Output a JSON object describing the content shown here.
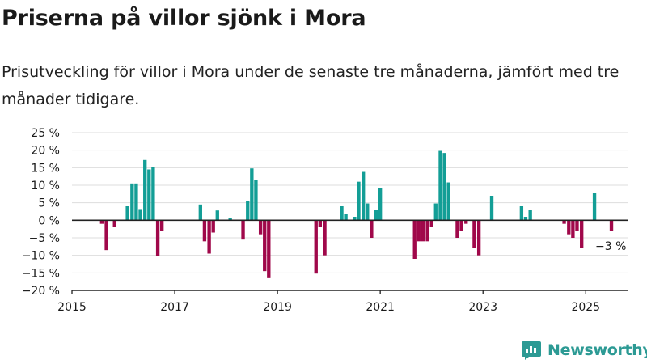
{
  "title": "Priserna på villor sjönk i Mora",
  "subtitle": "Prisutveckling för villor i Mora under de senaste tre månaderna, jämfört med tre månader tidigare.",
  "brand": {
    "name": "Newsworthy",
    "icon": "newsworthy-logo-icon"
  },
  "colors": {
    "positive": "#139e96",
    "negative": "#a0084a",
    "accent": "#2c9a94",
    "grid": "#dddddd",
    "axis": "#222222"
  },
  "chart_data": {
    "type": "bar",
    "title": "Priserna på villor sjönk i Mora",
    "subtitle": "Prisutveckling för villor i Mora under de senaste tre månaderna, jämfört med tre månader tidigare.",
    "xlabel": "",
    "ylabel": "",
    "xlim": [
      2015.0,
      2025.83
    ],
    "ylim": [
      -20,
      25
    ],
    "y_ticks": [
      25,
      20,
      15,
      10,
      5,
      0,
      -5,
      -10,
      -15,
      -20
    ],
    "y_tick_labels": [
      "25 %",
      "20 %",
      "15 %",
      "10 %",
      "5 %",
      "0 %",
      "−5 %",
      "−10 %",
      "−15 %",
      "−20 %"
    ],
    "x_ticks": [
      2015,
      2017,
      2019,
      2021,
      2023,
      2025
    ],
    "x_tick_labels": [
      "2015",
      "2017",
      "2019",
      "2021",
      "2023",
      "2025"
    ],
    "grid": true,
    "annotations": [
      {
        "text": "−3 %",
        "x": 2025.5,
        "y": -3
      }
    ],
    "data": [
      {
        "x": 2015.58,
        "y": -1
      },
      {
        "x": 2015.67,
        "y": -8.5
      },
      {
        "x": 2015.83,
        "y": -2
      },
      {
        "x": 2016.08,
        "y": 4
      },
      {
        "x": 2016.17,
        "y": 10.5
      },
      {
        "x": 2016.25,
        "y": 10.5
      },
      {
        "x": 2016.33,
        "y": 3.2
      },
      {
        "x": 2016.42,
        "y": 17.2
      },
      {
        "x": 2016.5,
        "y": 14.5
      },
      {
        "x": 2016.58,
        "y": 15.2
      },
      {
        "x": 2016.67,
        "y": -10.2
      },
      {
        "x": 2016.75,
        "y": -3
      },
      {
        "x": 2017.5,
        "y": 4.5
      },
      {
        "x": 2017.58,
        "y": -6
      },
      {
        "x": 2017.67,
        "y": -9.5
      },
      {
        "x": 2017.75,
        "y": -3.5
      },
      {
        "x": 2017.83,
        "y": 2.8
      },
      {
        "x": 2018.08,
        "y": 0.7
      },
      {
        "x": 2018.33,
        "y": -5.5
      },
      {
        "x": 2018.42,
        "y": 5.5
      },
      {
        "x": 2018.5,
        "y": 14.8
      },
      {
        "x": 2018.58,
        "y": 11.5
      },
      {
        "x": 2018.67,
        "y": -4
      },
      {
        "x": 2018.75,
        "y": -14.5
      },
      {
        "x": 2018.83,
        "y": -16.5
      },
      {
        "x": 2019.75,
        "y": -15.2
      },
      {
        "x": 2019.83,
        "y": -2
      },
      {
        "x": 2019.92,
        "y": -10
      },
      {
        "x": 2020.25,
        "y": 4
      },
      {
        "x": 2020.33,
        "y": 1.8
      },
      {
        "x": 2020.5,
        "y": 1
      },
      {
        "x": 2020.58,
        "y": 11
      },
      {
        "x": 2020.67,
        "y": 13.8
      },
      {
        "x": 2020.75,
        "y": 4.8
      },
      {
        "x": 2020.83,
        "y": -5
      },
      {
        "x": 2020.92,
        "y": 3
      },
      {
        "x": 2021.0,
        "y": 9.2
      },
      {
        "x": 2021.67,
        "y": -11
      },
      {
        "x": 2021.75,
        "y": -6
      },
      {
        "x": 2021.83,
        "y": -6
      },
      {
        "x": 2021.92,
        "y": -6
      },
      {
        "x": 2022.0,
        "y": -2
      },
      {
        "x": 2022.08,
        "y": 4.8
      },
      {
        "x": 2022.17,
        "y": 19.8
      },
      {
        "x": 2022.25,
        "y": 19.2
      },
      {
        "x": 2022.33,
        "y": 10.8
      },
      {
        "x": 2022.5,
        "y": -5
      },
      {
        "x": 2022.58,
        "y": -3
      },
      {
        "x": 2022.67,
        "y": -1
      },
      {
        "x": 2022.83,
        "y": -8
      },
      {
        "x": 2022.92,
        "y": -10
      },
      {
        "x": 2023.17,
        "y": 7
      },
      {
        "x": 2023.75,
        "y": 4
      },
      {
        "x": 2023.83,
        "y": 1
      },
      {
        "x": 2023.92,
        "y": 3
      },
      {
        "x": 2024.58,
        "y": -1
      },
      {
        "x": 2024.67,
        "y": -4
      },
      {
        "x": 2024.75,
        "y": -5
      },
      {
        "x": 2024.83,
        "y": -3
      },
      {
        "x": 2024.92,
        "y": -8
      },
      {
        "x": 2025.17,
        "y": 7.8
      },
      {
        "x": 2025.5,
        "y": -3
      }
    ]
  }
}
